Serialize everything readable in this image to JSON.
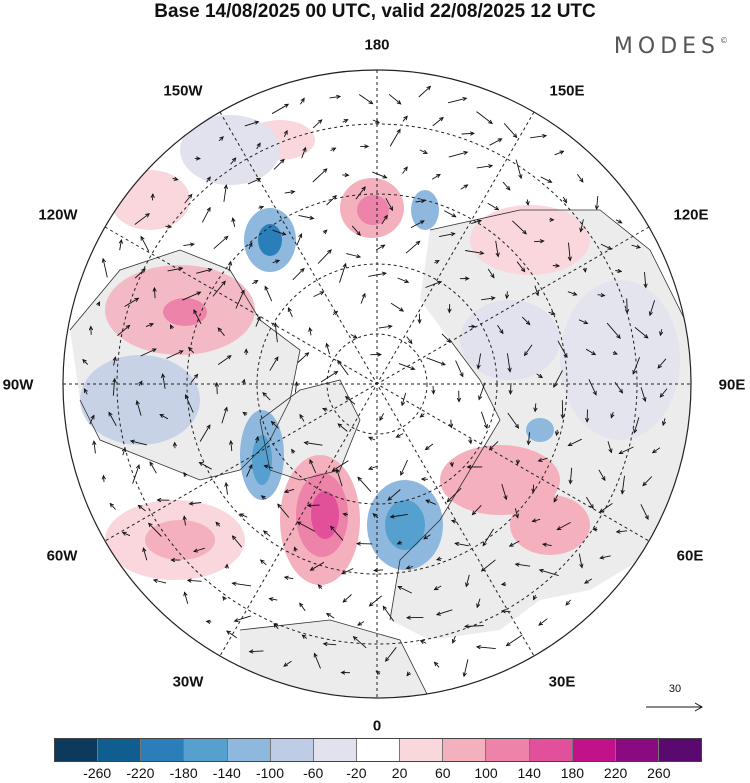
{
  "title": "Base 14/08/2025 00 UTC, valid 22/08/2025 12 UTC",
  "brand": {
    "name": "MODES",
    "mark": "©"
  },
  "longitude_labels": {
    "lon_180": "180",
    "lon_150E": "150E",
    "lon_120E": "120E",
    "lon_90E": "90E",
    "lon_60E": "60E",
    "lon_30E": "30E",
    "lon_0": "0",
    "lon_30W": "30W",
    "lon_60W": "60W",
    "lon_90W": "90W",
    "lon_120W": "120W",
    "lon_150W": "150W"
  },
  "vector_scale": {
    "label": "30"
  },
  "colorbar": {
    "tick_labels": [
      "-260",
      "-220",
      "-180",
      "-140",
      "-100",
      "-60",
      "-20",
      "20",
      "60",
      "100",
      "140",
      "180",
      "220",
      "260"
    ],
    "colors": [
      "#0d3a5c",
      "#105e8f",
      "#2a7fba",
      "#56a0cf",
      "#8fb8de",
      "#bfcce5",
      "#e2e2ef",
      "#ffffff",
      "#f9d7dc",
      "#f4b0bd",
      "#ee83a9",
      "#e24f9b",
      "#c2128a",
      "#8a0a80",
      "#5a0a6e"
    ]
  },
  "colors": {
    "land_gray": "#ececec",
    "ocean": "#ffffff",
    "coast": "#333333",
    "grid": "#222222"
  }
}
